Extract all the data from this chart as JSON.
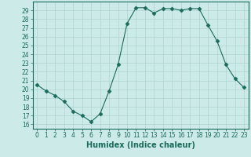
{
  "x": [
    0,
    1,
    2,
    3,
    4,
    5,
    6,
    7,
    8,
    9,
    10,
    11,
    12,
    13,
    14,
    15,
    16,
    17,
    18,
    19,
    20,
    21,
    22,
    23
  ],
  "y": [
    20.5,
    19.8,
    19.3,
    18.6,
    17.5,
    17.0,
    16.3,
    17.2,
    19.8,
    22.8,
    27.5,
    29.3,
    29.3,
    28.7,
    29.2,
    29.2,
    29.0,
    29.2,
    29.2,
    27.3,
    25.5,
    22.8,
    21.2,
    20.2
  ],
  "line_color": "#1a6b5a",
  "marker": "D",
  "marker_size": 2.5,
  "bg_color": "#cceae7",
  "grid_color": "#aed4d0",
  "xlabel": "Humidex (Indice chaleur)",
  "xlim": [
    -0.5,
    23.5
  ],
  "ylim": [
    15.5,
    30
  ],
  "yticks": [
    16,
    17,
    18,
    19,
    20,
    21,
    22,
    23,
    24,
    25,
    26,
    27,
    28,
    29
  ],
  "xticks": [
    0,
    1,
    2,
    3,
    4,
    5,
    6,
    7,
    8,
    9,
    10,
    11,
    12,
    13,
    14,
    15,
    16,
    17,
    18,
    19,
    20,
    21,
    22,
    23
  ],
  "tick_fontsize": 5.5,
  "xlabel_fontsize": 7,
  "axis_color": "#1a6b5a",
  "spine_color": "#1a6b5a"
}
